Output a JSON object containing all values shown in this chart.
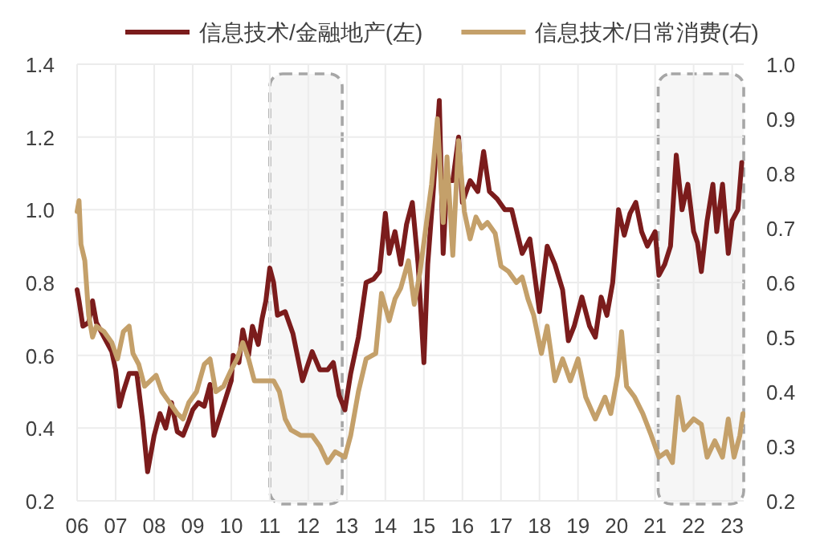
{
  "chart_data": {
    "type": "line",
    "legend": "top",
    "grid": true,
    "marker": "none",
    "line_style": "solid",
    "xlim": [
      2006,
      2023.3
    ],
    "xticks": [
      {
        "value": 2006,
        "label": "06"
      },
      {
        "value": 2007,
        "label": "07"
      },
      {
        "value": 2008,
        "label": "08"
      },
      {
        "value": 2009,
        "label": "09"
      },
      {
        "value": 2010,
        "label": "10"
      },
      {
        "value": 2011,
        "label": "11"
      },
      {
        "value": 2012,
        "label": "12"
      },
      {
        "value": 2013,
        "label": "13"
      },
      {
        "value": 2014,
        "label": "14"
      },
      {
        "value": 2015,
        "label": "15"
      },
      {
        "value": 2016,
        "label": "16"
      },
      {
        "value": 2017,
        "label": "17"
      },
      {
        "value": 2018,
        "label": "18"
      },
      {
        "value": 2019,
        "label": "19"
      },
      {
        "value": 2020,
        "label": "20"
      },
      {
        "value": 2021,
        "label": "21"
      },
      {
        "value": 2022,
        "label": "22"
      },
      {
        "value": 2023,
        "label": "23"
      }
    ],
    "ylim": [
      0.2,
      1.4
    ],
    "yticks": [
      0.2,
      0.4,
      0.6,
      0.8,
      {
        "value": 1.0,
        "label": "1.0"
      },
      1.2,
      1.4
    ],
    "y2lim": [
      0.2,
      1.0
    ],
    "y2ticks": [
      0.2,
      0.3,
      0.4,
      0.5,
      0.6,
      0.7,
      0.8,
      0.9,
      {
        "value": 1.0,
        "label": "1.0"
      }
    ],
    "bands": [
      {
        "axis": "x",
        "from": 2011.0,
        "to": 2012.88,
        "color": "#a6a6a6"
      },
      {
        "axis": "x",
        "from": 2021.08,
        "to": 2023.3,
        "color": "#a6a6a6"
      }
    ],
    "series": [
      {
        "name": "信息技术/金融地产(左)",
        "color": "#7b1c1c",
        "x": [
          2006.0,
          2006.05,
          2006.15,
          2006.3,
          2006.4,
          2006.5,
          2006.7,
          2006.9,
          2007.0,
          2007.1,
          2007.2,
          2007.35,
          2007.55,
          2007.7,
          2007.83,
          2008.0,
          2008.15,
          2008.3,
          2008.45,
          2008.6,
          2008.75,
          2008.9,
          2009.0,
          2009.15,
          2009.3,
          2009.45,
          2009.55,
          2009.7,
          2009.85,
          2010.0,
          2010.05,
          2010.2,
          2010.3,
          2010.45,
          2010.55,
          2010.7,
          2010.8,
          2010.9,
          2011.0,
          2011.1,
          2011.2,
          2011.4,
          2011.6,
          2011.85,
          2012.1,
          2012.3,
          2012.5,
          2012.65,
          2012.8,
          2012.95,
          2013.1,
          2013.3,
          2013.5,
          2013.7,
          2013.85,
          2014.0,
          2014.1,
          2014.25,
          2014.4,
          2014.55,
          2014.7,
          2014.85,
          2015.0,
          2015.1,
          2015.25,
          2015.4,
          2015.5,
          2015.6,
          2015.75,
          2015.9,
          2016.0,
          2016.2,
          2016.4,
          2016.55,
          2016.7,
          2016.9,
          2017.1,
          2017.28,
          2017.55,
          2017.75,
          2018.0,
          2018.2,
          2018.4,
          2018.6,
          2018.75,
          2018.9,
          2019.1,
          2019.3,
          2019.45,
          2019.6,
          2019.75,
          2019.9,
          2020.05,
          2020.2,
          2020.35,
          2020.5,
          2020.65,
          2020.8,
          2021.0,
          2021.1,
          2021.25,
          2021.4,
          2021.55,
          2021.7,
          2021.85,
          2022.0,
          2022.1,
          2022.2,
          2022.35,
          2022.5,
          2022.6,
          2022.75,
          2022.9,
          2023.0,
          2023.15,
          2023.25
        ],
        "values": [
          0.78,
          0.75,
          0.68,
          0.69,
          0.75,
          0.69,
          0.65,
          0.61,
          0.56,
          0.46,
          0.5,
          0.55,
          0.55,
          0.42,
          0.28,
          0.38,
          0.44,
          0.4,
          0.47,
          0.39,
          0.38,
          0.42,
          0.45,
          0.47,
          0.46,
          0.52,
          0.38,
          0.43,
          0.48,
          0.53,
          0.6,
          0.58,
          0.67,
          0.6,
          0.68,
          0.63,
          0.7,
          0.75,
          0.84,
          0.8,
          0.71,
          0.72,
          0.66,
          0.53,
          0.61,
          0.56,
          0.56,
          0.58,
          0.49,
          0.45,
          0.55,
          0.65,
          0.8,
          0.81,
          0.83,
          0.99,
          0.88,
          0.94,
          0.85,
          0.96,
          1.02,
          0.85,
          0.58,
          0.85,
          1.06,
          1.3,
          0.88,
          1.08,
          1.08,
          1.2,
          1.02,
          1.08,
          1.05,
          1.16,
          1.05,
          1.03,
          1.0,
          1.0,
          0.88,
          0.92,
          0.72,
          0.9,
          0.85,
          0.78,
          0.64,
          0.68,
          0.76,
          0.68,
          0.65,
          0.76,
          0.71,
          0.8,
          1.0,
          0.93,
          0.99,
          1.02,
          0.94,
          0.9,
          0.94,
          0.82,
          0.85,
          0.9,
          1.15,
          1.0,
          1.07,
          0.94,
          0.91,
          0.83,
          0.97,
          1.07,
          0.94,
          1.07,
          0.88,
          0.97,
          1.0,
          1.13
        ]
      },
      {
        "name": "信息技术/日常消费(右)",
        "color": "#c4a06a",
        "axis": "y2",
        "x": [
          2006.0,
          2006.05,
          2006.1,
          2006.2,
          2006.3,
          2006.4,
          2006.5,
          2006.7,
          2006.9,
          2007.05,
          2007.2,
          2007.35,
          2007.45,
          2007.6,
          2007.75,
          2007.9,
          2008.05,
          2008.2,
          2008.4,
          2008.6,
          2008.75,
          2008.9,
          2009.1,
          2009.3,
          2009.45,
          2009.6,
          2009.8,
          2010.0,
          2010.15,
          2010.3,
          2010.45,
          2010.6,
          2010.8,
          2011.0,
          2011.1,
          2011.25,
          2011.4,
          2011.55,
          2011.8,
          2012.1,
          2012.3,
          2012.5,
          2012.7,
          2012.95,
          2013.1,
          2013.3,
          2013.5,
          2013.75,
          2013.9,
          2014.1,
          2014.25,
          2014.4,
          2014.6,
          2014.75,
          2014.9,
          2015.05,
          2015.2,
          2015.35,
          2015.5,
          2015.6,
          2015.75,
          2015.9,
          2016.05,
          2016.2,
          2016.35,
          2016.5,
          2016.65,
          2016.85,
          2017.0,
          2017.2,
          2017.4,
          2017.55,
          2017.7,
          2017.85,
          2018.05,
          2018.2,
          2018.4,
          2018.6,
          2018.8,
          2019.0,
          2019.2,
          2019.45,
          2019.7,
          2019.85,
          2020.03,
          2020.13,
          2020.26,
          2020.47,
          2020.68,
          2020.9,
          2021.1,
          2021.3,
          2021.45,
          2021.6,
          2021.75,
          2022.0,
          2022.2,
          2022.35,
          2022.55,
          2022.75,
          2022.9,
          2023.05,
          2023.2,
          2023.28
        ],
        "values": [
          0.73,
          0.75,
          0.67,
          0.64,
          0.54,
          0.5,
          0.52,
          0.51,
          0.49,
          0.46,
          0.51,
          0.52,
          0.47,
          0.45,
          0.41,
          0.42,
          0.43,
          0.4,
          0.38,
          0.36,
          0.35,
          0.38,
          0.4,
          0.45,
          0.46,
          0.4,
          0.41,
          0.44,
          0.46,
          0.49,
          0.46,
          0.42,
          0.42,
          0.42,
          0.42,
          0.4,
          0.35,
          0.33,
          0.32,
          0.32,
          0.3,
          0.27,
          0.29,
          0.28,
          0.32,
          0.4,
          0.46,
          0.47,
          0.58,
          0.53,
          0.57,
          0.59,
          0.64,
          0.56,
          0.62,
          0.7,
          0.78,
          0.9,
          0.71,
          0.83,
          0.65,
          0.86,
          0.73,
          0.68,
          0.72,
          0.7,
          0.71,
          0.69,
          0.63,
          0.62,
          0.6,
          0.61,
          0.57,
          0.54,
          0.47,
          0.52,
          0.42,
          0.46,
          0.42,
          0.46,
          0.39,
          0.35,
          0.39,
          0.36,
          0.43,
          0.51,
          0.41,
          0.39,
          0.36,
          0.32,
          0.28,
          0.29,
          0.27,
          0.39,
          0.33,
          0.35,
          0.34,
          0.28,
          0.31,
          0.28,
          0.35,
          0.28,
          0.32,
          0.36
        ]
      }
    ]
  }
}
